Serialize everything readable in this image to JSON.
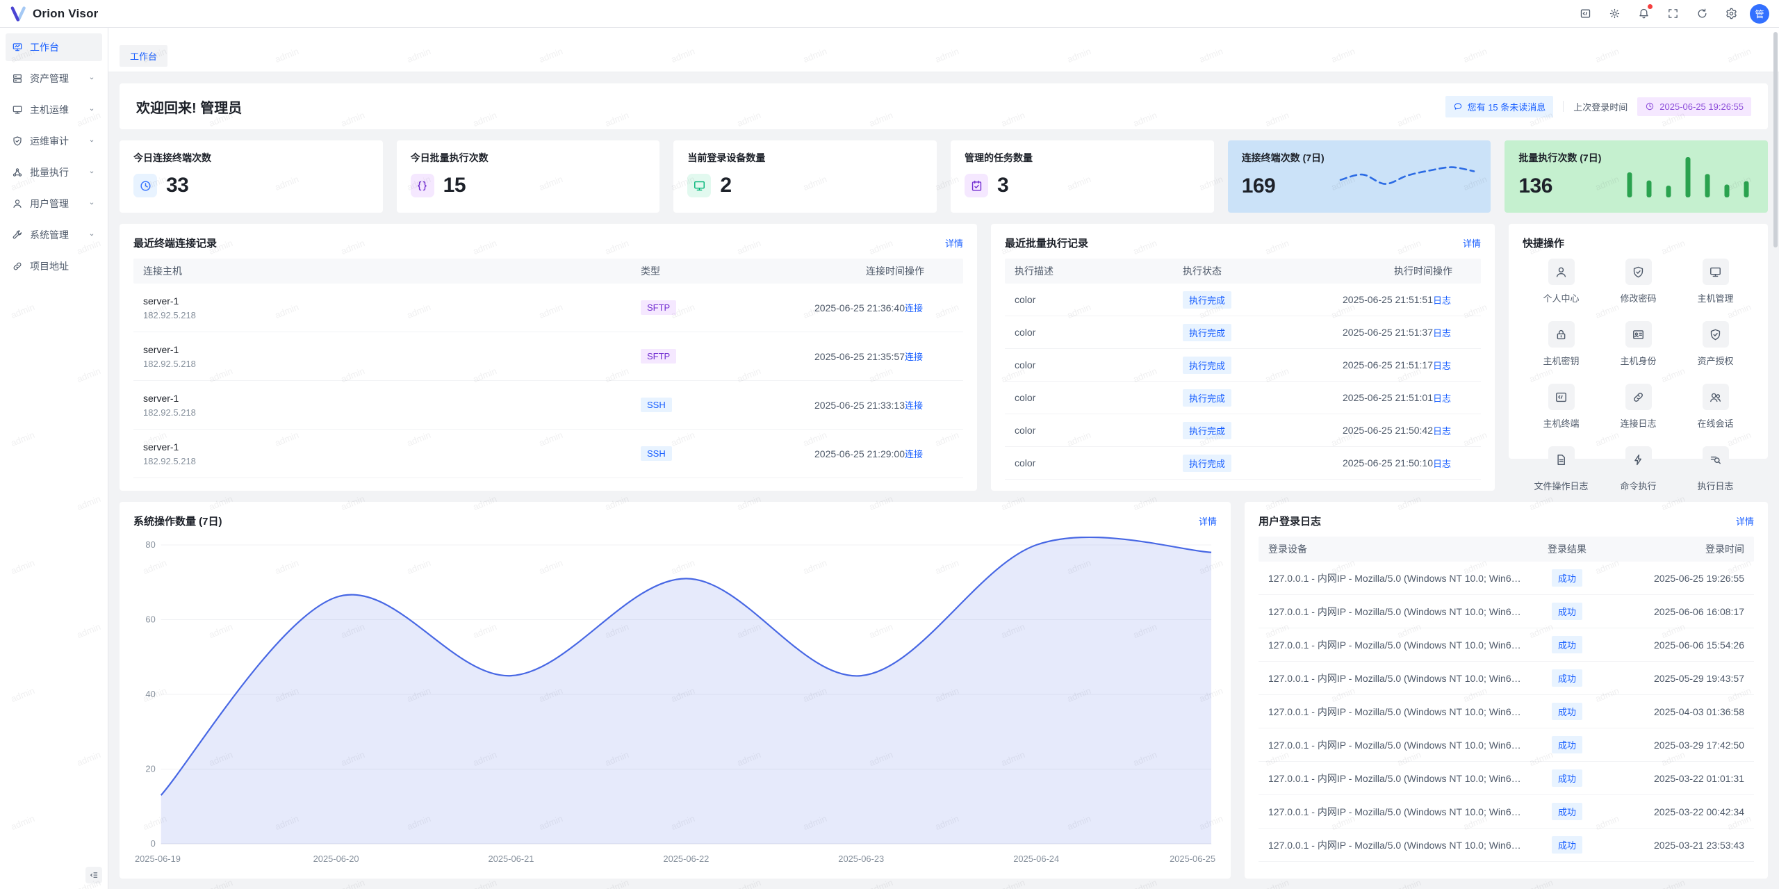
{
  "app": {
    "name": "Orion Visor",
    "avatar": "管"
  },
  "colors": {
    "primary": "#165dff",
    "purple": "#722ed1",
    "green_bar": "#2aa24f",
    "notification_dot": "#f53f3f",
    "chart_line": "#4767e4",
    "trend_line_card_bg": "#cbe2f8",
    "trend_bar_card_bg": "#c5f0cf"
  },
  "header": {
    "icons": [
      "code-window",
      "theme",
      "notification",
      "fullscreen",
      "refresh",
      "settings"
    ],
    "notification_dot": true
  },
  "breadcrumb": {
    "label": "工作台"
  },
  "sidebar": {
    "items": [
      {
        "key": "workbench",
        "label": "工作台",
        "icon": "workbench",
        "active": true,
        "chevron": false
      },
      {
        "key": "asset-management",
        "label": "资产管理",
        "icon": "assets",
        "active": false,
        "chevron": true
      },
      {
        "key": "host-ops",
        "label": "主机运维",
        "icon": "monitor",
        "active": false,
        "chevron": true
      },
      {
        "key": "ops-audit",
        "label": "运维审计",
        "icon": "shield-check",
        "active": false,
        "chevron": true
      },
      {
        "key": "batch-execution",
        "label": "批量执行",
        "icon": "batch",
        "active": false,
        "chevron": true
      },
      {
        "key": "user-management",
        "label": "用户管理",
        "icon": "user",
        "active": false,
        "chevron": true
      },
      {
        "key": "system-management",
        "label": "系统管理",
        "icon": "wrench",
        "active": false,
        "chevron": true
      },
      {
        "key": "project-link",
        "label": "项目地址",
        "icon": "link",
        "active": false,
        "chevron": false
      }
    ]
  },
  "welcome": {
    "title": "欢迎回来! 管理员",
    "unread_badge": "您有 15 条未读消息",
    "last_login_label": "上次登录时间",
    "last_login_time": "2025-06-25 19:26:55"
  },
  "stats": [
    {
      "key": "today-terminal-connections",
      "label": "今日连接终端次数",
      "value": "33",
      "icon": "clock",
      "icon_color": "#3370ff",
      "icon_bg": "#e8f3ff"
    },
    {
      "key": "today-batch-executions",
      "label": "今日批量执行次数",
      "value": "15",
      "icon": "braces",
      "icon_color": "#722ed1",
      "icon_bg": "#f5e8ff"
    },
    {
      "key": "current-login-devices",
      "label": "当前登录设备数量",
      "value": "2",
      "icon": "monitor",
      "icon_color": "#00b578",
      "icon_bg": "#e2f9ef"
    },
    {
      "key": "managed-tasks",
      "label": "管理的任务数量",
      "value": "3",
      "icon": "task",
      "icon_color": "#722ed1",
      "icon_bg": "#f5e8ff"
    }
  ],
  "chart_data": [
    {
      "id": "system-operations-7d",
      "type": "area",
      "title": "系统操作数量 (7日)",
      "more": "详情",
      "x": [
        "2025-06-19",
        "2025-06-20",
        "2025-06-21",
        "2025-06-22",
        "2025-06-23",
        "2025-06-24",
        "2025-06-25"
      ],
      "values": [
        13,
        66,
        45,
        71,
        45,
        80,
        78
      ],
      "ylim": [
        0,
        80
      ],
      "yticks": [
        0,
        20,
        40,
        60,
        80
      ],
      "grid": true,
      "legend": "none",
      "line_color": "#4767e4",
      "fill_color": "rgba(86,112,226,0.15)"
    },
    {
      "id": "terminal-connections-7d",
      "type": "line",
      "label": "连接终端次数 (7日)",
      "value": "169",
      "values": [
        42,
        58,
        30,
        55,
        70,
        80,
        68
      ],
      "bg": "#cbe2f8",
      "accent": "#2b6be4",
      "style": "dashed-sparkline"
    },
    {
      "id": "batch-executions-7d",
      "type": "bar",
      "label": "批量执行次数 (7日)",
      "value": "136",
      "values": [
        62,
        42,
        29,
        100,
        58,
        32,
        40
      ],
      "bg": "#c5f0cf",
      "accent": "#2aa24f"
    }
  ],
  "terminal_panel": {
    "title": "最近终端连接记录",
    "more": "详情",
    "columns": [
      "连接主机",
      "类型",
      "连接时间",
      "操作"
    ],
    "action": "连接",
    "rows": [
      {
        "host": "server-1",
        "ip": "182.92.5.218",
        "type": "SFTP",
        "time": "2025-06-25 21:36:40"
      },
      {
        "host": "server-1",
        "ip": "182.92.5.218",
        "type": "SFTP",
        "time": "2025-06-25 21:35:57"
      },
      {
        "host": "server-1",
        "ip": "182.92.5.218",
        "type": "SSH",
        "time": "2025-06-25 21:33:13"
      },
      {
        "host": "server-1",
        "ip": "182.92.5.218",
        "type": "SSH",
        "time": "2025-06-25 21:29:00"
      }
    ]
  },
  "batch_panel": {
    "title": "最近批量执行记录",
    "more": "详情",
    "columns": [
      "执行描述",
      "执行状态",
      "执行时间",
      "操作"
    ],
    "status_label": "执行完成",
    "action": "日志",
    "rows": [
      {
        "desc": "color",
        "time": "2025-06-25 21:51:51"
      },
      {
        "desc": "color",
        "time": "2025-06-25 21:51:37"
      },
      {
        "desc": "color",
        "time": "2025-06-25 21:51:17"
      },
      {
        "desc": "color",
        "time": "2025-06-25 21:51:01"
      },
      {
        "desc": "color",
        "time": "2025-06-25 21:50:42"
      },
      {
        "desc": "color",
        "time": "2025-06-25 21:50:10"
      }
    ]
  },
  "quick_panel": {
    "title": "快捷操作",
    "items": [
      {
        "key": "profile",
        "label": "个人中心",
        "icon": "user"
      },
      {
        "key": "change-password",
        "label": "修改密码",
        "icon": "shield-check"
      },
      {
        "key": "host-management",
        "label": "主机管理",
        "icon": "monitor"
      },
      {
        "key": "host-keys",
        "label": "主机密钥",
        "icon": "lock"
      },
      {
        "key": "host-identities",
        "label": "主机身份",
        "icon": "id-card"
      },
      {
        "key": "asset-authorization",
        "label": "资产授权",
        "icon": "shield-check"
      },
      {
        "key": "host-terminal",
        "label": "主机终端",
        "icon": "terminal"
      },
      {
        "key": "connection-logs",
        "label": "连接日志",
        "icon": "link"
      },
      {
        "key": "online-sessions",
        "label": "在线会话",
        "icon": "users"
      },
      {
        "key": "file-operation-logs",
        "label": "文件操作日志",
        "icon": "file"
      },
      {
        "key": "command-execution",
        "label": "命令执行",
        "icon": "bolt"
      },
      {
        "key": "execution-logs",
        "label": "执行日志",
        "icon": "search-list"
      }
    ]
  },
  "login_panel": {
    "title": "用户登录日志",
    "more": "详情",
    "columns": [
      "登录设备",
      "登录结果",
      "登录时间"
    ],
    "result_label": "成功",
    "device": "127.0.0.1 - 内网IP - Mozilla/5.0 (Windows NT 10.0; Win64;...",
    "rows": [
      "2025-06-25 19:26:55",
      "2025-06-06 16:08:17",
      "2025-06-06 15:54:26",
      "2025-05-29 19:43:57",
      "2025-04-03 01:36:58",
      "2025-03-29 17:42:50",
      "2025-03-22 01:01:31",
      "2025-03-22 00:42:34",
      "2025-03-21 23:53:43"
    ]
  },
  "watermark": {
    "text": "admin"
  }
}
